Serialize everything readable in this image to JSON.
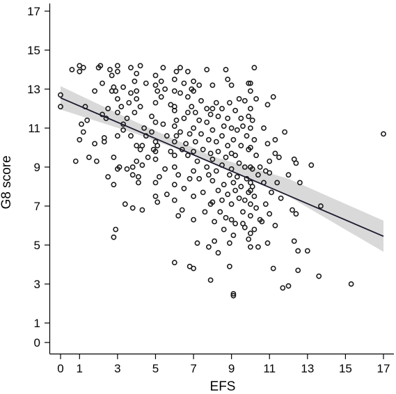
{
  "chart_data": {
    "type": "scatter",
    "title": "",
    "xlabel": "EFS",
    "ylabel": "G8 score",
    "xlim": [
      -0.3,
      17.4
    ],
    "ylim": [
      -0.2,
      17.6
    ],
    "x_ticks": [
      0,
      1,
      3,
      5,
      7,
      9,
      11,
      13,
      15,
      17
    ],
    "y_ticks": [
      0,
      1,
      3,
      5,
      7,
      9,
      11,
      13,
      15,
      17
    ],
    "x_tick_labels": [
      "0",
      "1",
      "3",
      "5",
      "7",
      "9",
      "11",
      "13",
      "15",
      "17"
    ],
    "y_tick_labels": [
      "0",
      "1",
      "3",
      "5",
      "7",
      "9",
      "11",
      "13",
      "15",
      "17"
    ],
    "grid": false,
    "colors": {
      "points": "#1a1a1a",
      "fit_line": "#1a1a2e",
      "confidence_band": "#d9d9d9"
    },
    "regression": {
      "x": [
        0,
        17
      ],
      "y": [
        12.55,
        5.45
      ]
    },
    "confidence_band": {
      "x": [
        0,
        4,
        8,
        12,
        17
      ],
      "lower": [
        11.95,
        10.7,
        9.25,
        7.5,
        4.65
      ],
      "upper": [
        13.15,
        11.3,
        9.55,
        8.4,
        6.25
      ]
    },
    "points": [
      [
        0.0,
        12.7
      ],
      [
        0.0,
        12.1
      ],
      [
        0.6,
        14.0
      ],
      [
        0.8,
        9.3
      ],
      [
        1.0,
        14.2
      ],
      [
        1.0,
        13.9
      ],
      [
        1.1,
        11.2
      ],
      [
        1.2,
        10.8
      ],
      [
        1.0,
        10.4
      ],
      [
        1.2,
        14.1
      ],
      [
        1.3,
        12.1
      ],
      [
        1.4,
        11.4
      ],
      [
        1.5,
        9.5
      ],
      [
        1.8,
        12.9
      ],
      [
        1.8,
        10.2
      ],
      [
        1.9,
        9.3
      ],
      [
        2.0,
        14.1
      ],
      [
        2.1,
        14.2
      ],
      [
        2.2,
        13.3
      ],
      [
        2.2,
        11.7
      ],
      [
        2.3,
        10.5
      ],
      [
        2.3,
        10.3
      ],
      [
        2.4,
        11.5
      ],
      [
        2.5,
        12.0
      ],
      [
        2.5,
        8.5
      ],
      [
        2.6,
        14.0
      ],
      [
        2.7,
        13.7
      ],
      [
        2.7,
        12.9
      ],
      [
        2.8,
        13.1
      ],
      [
        2.9,
        12.9
      ],
      [
        2.8,
        9.5
      ],
      [
        2.8,
        8.1
      ],
      [
        2.8,
        5.4
      ],
      [
        2.9,
        5.8
      ],
      [
        3.0,
        14.2
      ],
      [
        3.0,
        13.9
      ],
      [
        3.0,
        12.5
      ],
      [
        3.0,
        11.8
      ],
      [
        3.0,
        10.6
      ],
      [
        3.0,
        8.9
      ],
      [
        3.1,
        9.0
      ],
      [
        3.2,
        12.1
      ],
      [
        3.3,
        13.1
      ],
      [
        3.3,
        11.2
      ],
      [
        3.3,
        10.9
      ],
      [
        3.4,
        7.1
      ],
      [
        3.5,
        11.5
      ],
      [
        3.5,
        8.9
      ],
      [
        3.6,
        12.3
      ],
      [
        3.7,
        14.1
      ],
      [
        3.7,
        12.8
      ],
      [
        3.7,
        10.6
      ],
      [
        3.8,
        9.0
      ],
      [
        3.8,
        8.6
      ],
      [
        3.8,
        6.9
      ],
      [
        3.9,
        13.4
      ],
      [
        3.9,
        11.8
      ],
      [
        4.0,
        13.8
      ],
      [
        4.0,
        12.9
      ],
      [
        4.0,
        12.5
      ],
      [
        4.0,
        10.1
      ],
      [
        4.0,
        9.3
      ],
      [
        4.1,
        8.5
      ],
      [
        4.1,
        8.2
      ],
      [
        4.2,
        14.2
      ],
      [
        4.2,
        12.1
      ],
      [
        4.2,
        9.9
      ],
      [
        4.3,
        10.1
      ],
      [
        4.3,
        9.1
      ],
      [
        4.3,
        6.8
      ],
      [
        4.4,
        11.0
      ],
      [
        4.5,
        13.3
      ],
      [
        4.5,
        10.6
      ],
      [
        4.6,
        9.5
      ],
      [
        4.8,
        11.6
      ],
      [
        4.8,
        10.8
      ],
      [
        4.9,
        9.9
      ],
      [
        5.0,
        13.7
      ],
      [
        5.0,
        13.2
      ],
      [
        5.0,
        12.3
      ],
      [
        5.0,
        11.3
      ],
      [
        5.0,
        10.3
      ],
      [
        5.0,
        9.8
      ],
      [
        5.0,
        9.4
      ],
      [
        5.0,
        8.2
      ],
      [
        5.0,
        7.5
      ],
      [
        5.1,
        12.9
      ],
      [
        5.1,
        10.1
      ],
      [
        5.1,
        7.2
      ],
      [
        5.2,
        8.5
      ],
      [
        5.3,
        13.4
      ],
      [
        5.3,
        12.6
      ],
      [
        5.4,
        14.1
      ],
      [
        5.4,
        11.2
      ],
      [
        5.5,
        13.0
      ],
      [
        5.5,
        8.9
      ],
      [
        5.6,
        10.6
      ],
      [
        5.6,
        7.6
      ],
      [
        5.8,
        12.2
      ],
      [
        5.8,
        9.8
      ],
      [
        6.0,
        13.5
      ],
      [
        6.0,
        12.9
      ],
      [
        6.0,
        12.1
      ],
      [
        6.0,
        11.9
      ],
      [
        6.0,
        11.1
      ],
      [
        6.0,
        10.3
      ],
      [
        6.0,
        9.6
      ],
      [
        6.0,
        9.0
      ],
      [
        6.0,
        8.1
      ],
      [
        6.0,
        7.3
      ],
      [
        6.0,
        4.1
      ],
      [
        6.1,
        13.9
      ],
      [
        6.1,
        11.4
      ],
      [
        6.1,
        10.6
      ],
      [
        6.2,
        8.6
      ],
      [
        6.2,
        6.5
      ],
      [
        6.3,
        14.1
      ],
      [
        6.3,
        12.8
      ],
      [
        6.3,
        10.8
      ],
      [
        6.4,
        9.9
      ],
      [
        6.4,
        6.8
      ],
      [
        6.5,
        13.3
      ],
      [
        6.5,
        11.5
      ],
      [
        6.5,
        7.9
      ],
      [
        6.6,
        10.2
      ],
      [
        6.7,
        13.9
      ],
      [
        6.7,
        12.6
      ],
      [
        6.7,
        11.8
      ],
      [
        6.7,
        9.6
      ],
      [
        6.8,
        10.7
      ],
      [
        6.8,
        8.4
      ],
      [
        6.8,
        3.9
      ],
      [
        6.9,
        13.0
      ],
      [
        6.9,
        12.1
      ],
      [
        7.0,
        13.4
      ],
      [
        7.0,
        12.9
      ],
      [
        7.0,
        11.0
      ],
      [
        7.0,
        9.8
      ],
      [
        7.0,
        8.8
      ],
      [
        7.0,
        7.5
      ],
      [
        7.0,
        6.3
      ],
      [
        7.0,
        3.8
      ],
      [
        7.1,
        11.8
      ],
      [
        7.1,
        10.3
      ],
      [
        7.2,
        9.3
      ],
      [
        7.2,
        5.1
      ],
      [
        7.3,
        13.2
      ],
      [
        7.3,
        11.4
      ],
      [
        7.3,
        8.4
      ],
      [
        7.4,
        12.4
      ],
      [
        7.4,
        10.7
      ],
      [
        7.5,
        9.9
      ],
      [
        7.5,
        7.7
      ],
      [
        7.6,
        6.7
      ],
      [
        7.7,
        14.0
      ],
      [
        7.7,
        12.0
      ],
      [
        7.7,
        11.3
      ],
      [
        7.7,
        9.0
      ],
      [
        7.8,
        10.4
      ],
      [
        7.8,
        8.6
      ],
      [
        7.8,
        4.9
      ],
      [
        7.9,
        11.7
      ],
      [
        7.9,
        9.7
      ],
      [
        7.9,
        7.1
      ],
      [
        7.9,
        3.2
      ],
      [
        8.0,
        13.2
      ],
      [
        8.0,
        12.0
      ],
      [
        8.0,
        10.9
      ],
      [
        8.0,
        9.4
      ],
      [
        8.0,
        8.3
      ],
      [
        8.0,
        7.2
      ],
      [
        8.1,
        6.2
      ],
      [
        8.1,
        5.2
      ],
      [
        8.2,
        12.3
      ],
      [
        8.2,
        10.3
      ],
      [
        8.2,
        8.8
      ],
      [
        8.3,
        11.6
      ],
      [
        8.3,
        9.8
      ],
      [
        8.3,
        7.8
      ],
      [
        8.4,
        6.7
      ],
      [
        8.5,
        12.0
      ],
      [
        8.5,
        10.6
      ],
      [
        8.5,
        9.1
      ],
      [
        8.5,
        7.3
      ],
      [
        8.6,
        11.1
      ],
      [
        8.6,
        8.1
      ],
      [
        8.6,
        5.8
      ],
      [
        8.7,
        14.0
      ],
      [
        8.7,
        9.5
      ],
      [
        8.7,
        6.4
      ],
      [
        8.8,
        13.5
      ],
      [
        8.8,
        11.5
      ],
      [
        8.8,
        10.1
      ],
      [
        8.8,
        7.6
      ],
      [
        8.9,
        12.3
      ],
      [
        8.9,
        8.6
      ],
      [
        8.9,
        5.1
      ],
      [
        8.9,
        3.9
      ],
      [
        9.0,
        13.2
      ],
      [
        9.0,
        11.0
      ],
      [
        9.0,
        9.7
      ],
      [
        9.0,
        8.9
      ],
      [
        9.0,
        7.1
      ],
      [
        9.0,
        6.3
      ],
      [
        9.1,
        10.4
      ],
      [
        9.1,
        8.2
      ],
      [
        9.1,
        5.5
      ],
      [
        9.1,
        2.5
      ],
      [
        9.1,
        2.4
      ],
      [
        9.2,
        11.9
      ],
      [
        9.2,
        9.6
      ],
      [
        9.2,
        7.8
      ],
      [
        9.2,
        6.1
      ],
      [
        9.3,
        10.9
      ],
      [
        9.3,
        8.5
      ],
      [
        9.4,
        12.5
      ],
      [
        9.4,
        9.2
      ],
      [
        9.4,
        7.4
      ],
      [
        9.5,
        11.5
      ],
      [
        9.5,
        10.1
      ],
      [
        9.5,
        8.0
      ],
      [
        9.6,
        11.1
      ],
      [
        9.6,
        6.7
      ],
      [
        9.7,
        12.4
      ],
      [
        9.7,
        9.0
      ],
      [
        9.7,
        7.3
      ],
      [
        9.7,
        5.9
      ],
      [
        9.8,
        10.6
      ],
      [
        9.8,
        8.4
      ],
      [
        9.9,
        13.3
      ],
      [
        9.9,
        11.6
      ],
      [
        9.9,
        9.9
      ],
      [
        9.9,
        7.7
      ],
      [
        9.9,
        5.3
      ],
      [
        10.0,
        13.3
      ],
      [
        10.0,
        12.9
      ],
      [
        10.0,
        12.0
      ],
      [
        10.0,
        11.0
      ],
      [
        10.0,
        10.0
      ],
      [
        10.0,
        9.0
      ],
      [
        10.0,
        8.2
      ],
      [
        10.0,
        7.8
      ],
      [
        10.0,
        7.1
      ],
      [
        10.0,
        6.5
      ],
      [
        10.0,
        5.6
      ],
      [
        10.0,
        4.9
      ],
      [
        10.1,
        11.4
      ],
      [
        10.1,
        8.9
      ],
      [
        10.1,
        8.0
      ],
      [
        10.2,
        14.1
      ],
      [
        10.2,
        10.4
      ],
      [
        10.2,
        7.5
      ],
      [
        10.2,
        5.8
      ],
      [
        10.3,
        12.5
      ],
      [
        10.3,
        9.6
      ],
      [
        10.3,
        6.9
      ],
      [
        10.4,
        8.6
      ],
      [
        10.4,
        4.9
      ],
      [
        10.5,
        9.0
      ],
      [
        10.5,
        6.3
      ],
      [
        10.7,
        11.0
      ],
      [
        10.7,
        8.2
      ],
      [
        10.8,
        8.8
      ],
      [
        10.8,
        7.1
      ],
      [
        10.9,
        12.2
      ],
      [
        10.9,
        10.2
      ],
      [
        10.9,
        5.1
      ],
      [
        11.0,
        9.3
      ],
      [
        11.0,
        8.7
      ],
      [
        11.0,
        6.6
      ],
      [
        11.1,
        7.7
      ],
      [
        11.2,
        3.8
      ],
      [
        11.2,
        12.6
      ],
      [
        11.3,
        10.4
      ],
      [
        11.3,
        6.0
      ],
      [
        11.4,
        8.2
      ],
      [
        11.5,
        9.5
      ],
      [
        11.6,
        7.4
      ],
      [
        11.7,
        2.8
      ],
      [
        12.0,
        8.6
      ],
      [
        12.2,
        6.8
      ],
      [
        12.3,
        9.4
      ],
      [
        12.3,
        5.2
      ],
      [
        12.4,
        6.6
      ],
      [
        12.5,
        3.7
      ],
      [
        12.5,
        4.7
      ],
      [
        12.6,
        8.2
      ],
      [
        12.0,
        2.9
      ],
      [
        13.0,
        4.7
      ],
      [
        13.2,
        9.1
      ],
      [
        13.6,
        3.4
      ],
      [
        13.7,
        7.0
      ],
      [
        15.3,
        3.0
      ],
      [
        17.0,
        10.7
      ],
      [
        11.8,
        10.8
      ],
      [
        11.3,
        9.7
      ],
      [
        12.4,
        9.2
      ],
      [
        10.6,
        6.2
      ],
      [
        9.6,
        6.1
      ],
      [
        8.3,
        4.6
      ]
    ]
  }
}
